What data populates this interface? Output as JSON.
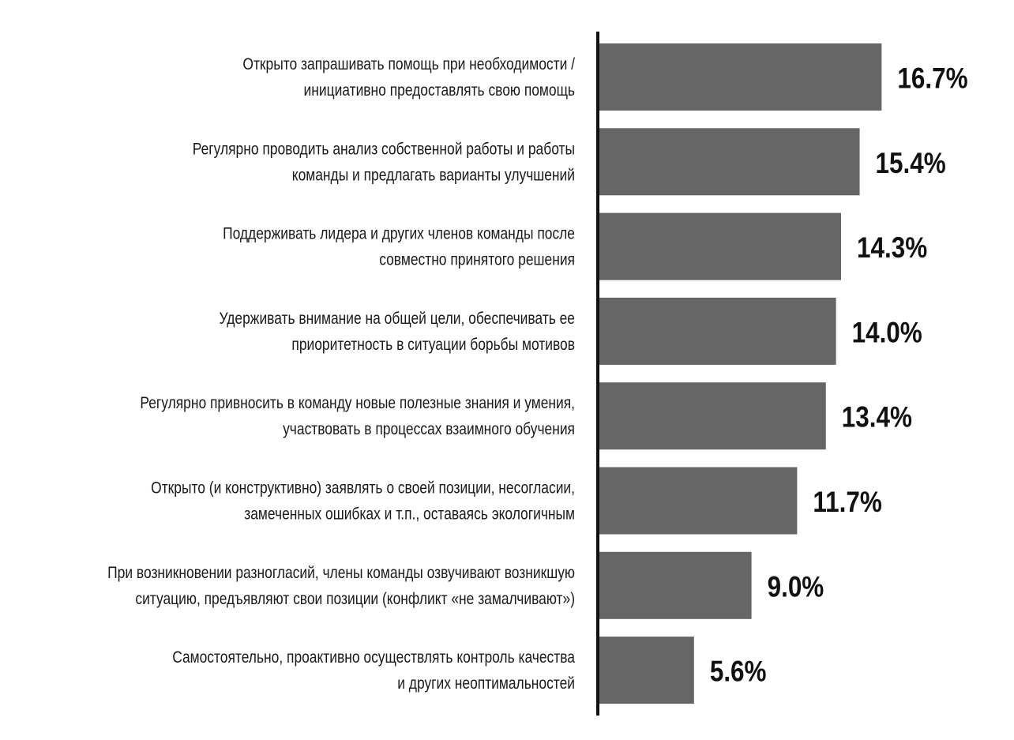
{
  "chart_data": {
    "type": "bar",
    "orientation": "horizontal",
    "title": "",
    "xlabel": "",
    "ylabel": "",
    "xlim": [
      0,
      17.5
    ],
    "grid": false,
    "bar_color": "#666666",
    "categories": [
      [
        "Открыто запрашивать помощь при необходимости /",
        "инициативно предоставлять свою помощь"
      ],
      [
        "Регулярно проводить анализ собственной работы и работы",
        "команды и предлагать варианты улучшений"
      ],
      [
        "Поддерживать лидера и других членов команды после",
        "совместно принятого решения"
      ],
      [
        "Удерживать внимание на общей цели, обеспечивать ее",
        "приоритетность в ситуации борьбы мотивов"
      ],
      [
        "Регулярно  привносить в команду новые полезные знания и умения,",
        "участвовать в процессах взаимного обучения"
      ],
      [
        "Открыто (и конструктивно) заявлять о своей позиции, несогласии,",
        "замеченных ошибках и т.п., оставаясь экологичным"
      ],
      [
        "При возникновении разногласий, члены команды озвучивают возникшую",
        "ситуацию, предъявляют свои позиции (конфликт «не замалчивают»)"
      ],
      [
        "Самостоятельно, проактивно осуществлять контроль качества",
        "и других неоптимальностей"
      ]
    ],
    "values": [
      16.7,
      15.4,
      14.3,
      14.0,
      13.4,
      11.7,
      9.0,
      5.6
    ],
    "labels": [
      "16.7%",
      "15.4%",
      "14.3%",
      "14.0%",
      "13.4%",
      "11.7%",
      "9.0%",
      "5.6%"
    ]
  }
}
